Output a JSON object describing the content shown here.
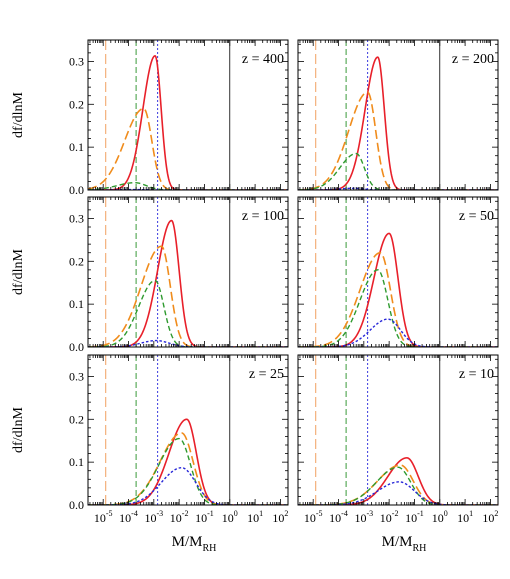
{
  "chart_data": {
    "type": "line",
    "ylabel": "df/dlnM",
    "xlabel_main": "M/M",
    "xlabel_sub": "RH",
    "x_scale": "log",
    "xlim_exp": [
      -5.6,
      2.3
    ],
    "ylim": [
      0,
      0.35
    ],
    "y_ticks": [
      "0.0",
      "0.1",
      "0.2",
      "0.3"
    ],
    "y_tick_values": [
      0,
      0.1,
      0.2,
      0.3
    ],
    "x_ticks": [
      {
        "exp": -5,
        "base": "10",
        "sup": "-5"
      },
      {
        "exp": -4,
        "base": "10",
        "sup": "-4"
      },
      {
        "exp": -3,
        "base": "10",
        "sup": "-3"
      },
      {
        "exp": -2,
        "base": "10",
        "sup": "-2"
      },
      {
        "exp": -1,
        "base": "10",
        "sup": "-1"
      },
      {
        "exp": 0,
        "base": "10",
        "sup": "0"
      },
      {
        "exp": 1,
        "base": "10",
        "sup": "1"
      },
      {
        "exp": 2,
        "base": "10",
        "sup": "2"
      }
    ],
    "reference_lines": [
      {
        "exp": -4.9,
        "color": "#f0a060",
        "dash": "10,4"
      },
      {
        "exp": -3.7,
        "color": "#3a9a3a",
        "dash": "6,3"
      },
      {
        "exp": -2.85,
        "color": "#3a3adf",
        "dash": "2,2"
      },
      {
        "exp": 0.0,
        "color": "#000000",
        "dash": ""
      }
    ],
    "series_styles": [
      {
        "color": "#e8202a",
        "dash": "",
        "width": 1.6
      },
      {
        "color": "#f08c1c",
        "dash": "9,4",
        "width": 1.6
      },
      {
        "color": "#2e9a2e",
        "dash": "5,3",
        "width": 1.4
      },
      {
        "color": "#2828d8",
        "dash": "2.5,2",
        "width": 1.4
      }
    ],
    "panels": [
      {
        "label": "z = 400",
        "series": [
          {
            "peak": 0.313,
            "mu": -2.95,
            "sl": 0.48,
            "sr": 0.24
          },
          {
            "peak": 0.19,
            "mu": -3.4,
            "sl": 0.75,
            "sr": 0.32
          },
          {
            "peak": 0.017,
            "mu": -3.75,
            "sl": 0.7,
            "sr": 0.45
          },
          {
            "peak": 0.001,
            "mu": -3.8,
            "sl": 0.6,
            "sr": 0.5
          }
        ]
      },
      {
        "label": "z = 200",
        "series": [
          {
            "peak": 0.31,
            "mu": -2.45,
            "sl": 0.5,
            "sr": 0.26
          },
          {
            "peak": 0.228,
            "mu": -2.85,
            "sl": 0.75,
            "sr": 0.32
          },
          {
            "peak": 0.085,
            "mu": -3.3,
            "sl": 0.65,
            "sr": 0.32
          },
          {
            "peak": 0.004,
            "mu": -3.4,
            "sl": 0.6,
            "sr": 0.4
          }
        ]
      },
      {
        "label": "z = 100",
        "series": [
          {
            "peak": 0.295,
            "mu": -2.3,
            "sl": 0.55,
            "sr": 0.3
          },
          {
            "peak": 0.235,
            "mu": -2.7,
            "sl": 0.8,
            "sr": 0.35
          },
          {
            "peak": 0.155,
            "mu": -2.95,
            "sl": 0.65,
            "sr": 0.35
          },
          {
            "peak": 0.015,
            "mu": -2.9,
            "sl": 0.6,
            "sr": 0.5
          }
        ]
      },
      {
        "label": "z = 50",
        "series": [
          {
            "peak": 0.265,
            "mu": -2.0,
            "sl": 0.6,
            "sr": 0.35
          },
          {
            "peak": 0.22,
            "mu": -2.35,
            "sl": 0.8,
            "sr": 0.4
          },
          {
            "peak": 0.18,
            "mu": -2.45,
            "sl": 0.7,
            "sr": 0.4
          },
          {
            "peak": 0.065,
            "mu": -2.05,
            "sl": 0.7,
            "sr": 0.5
          }
        ]
      },
      {
        "label": "z = 25",
        "series": [
          {
            "peak": 0.2,
            "mu": -1.7,
            "sl": 0.7,
            "sr": 0.38
          },
          {
            "peak": 0.168,
            "mu": -1.9,
            "sl": 0.85,
            "sr": 0.45
          },
          {
            "peak": 0.155,
            "mu": -2.0,
            "sl": 0.8,
            "sr": 0.45
          },
          {
            "peak": 0.087,
            "mu": -1.9,
            "sl": 0.8,
            "sr": 0.55
          }
        ]
      },
      {
        "label": "z = 10",
        "series": [
          {
            "peak": 0.11,
            "mu": -1.3,
            "sl": 0.75,
            "sr": 0.45
          },
          {
            "peak": 0.093,
            "mu": -1.55,
            "sl": 0.9,
            "sr": 0.5
          },
          {
            "peak": 0.088,
            "mu": -1.65,
            "sl": 0.85,
            "sr": 0.5
          },
          {
            "peak": 0.054,
            "mu": -1.6,
            "sl": 0.85,
            "sr": 0.6
          }
        ]
      }
    ]
  }
}
